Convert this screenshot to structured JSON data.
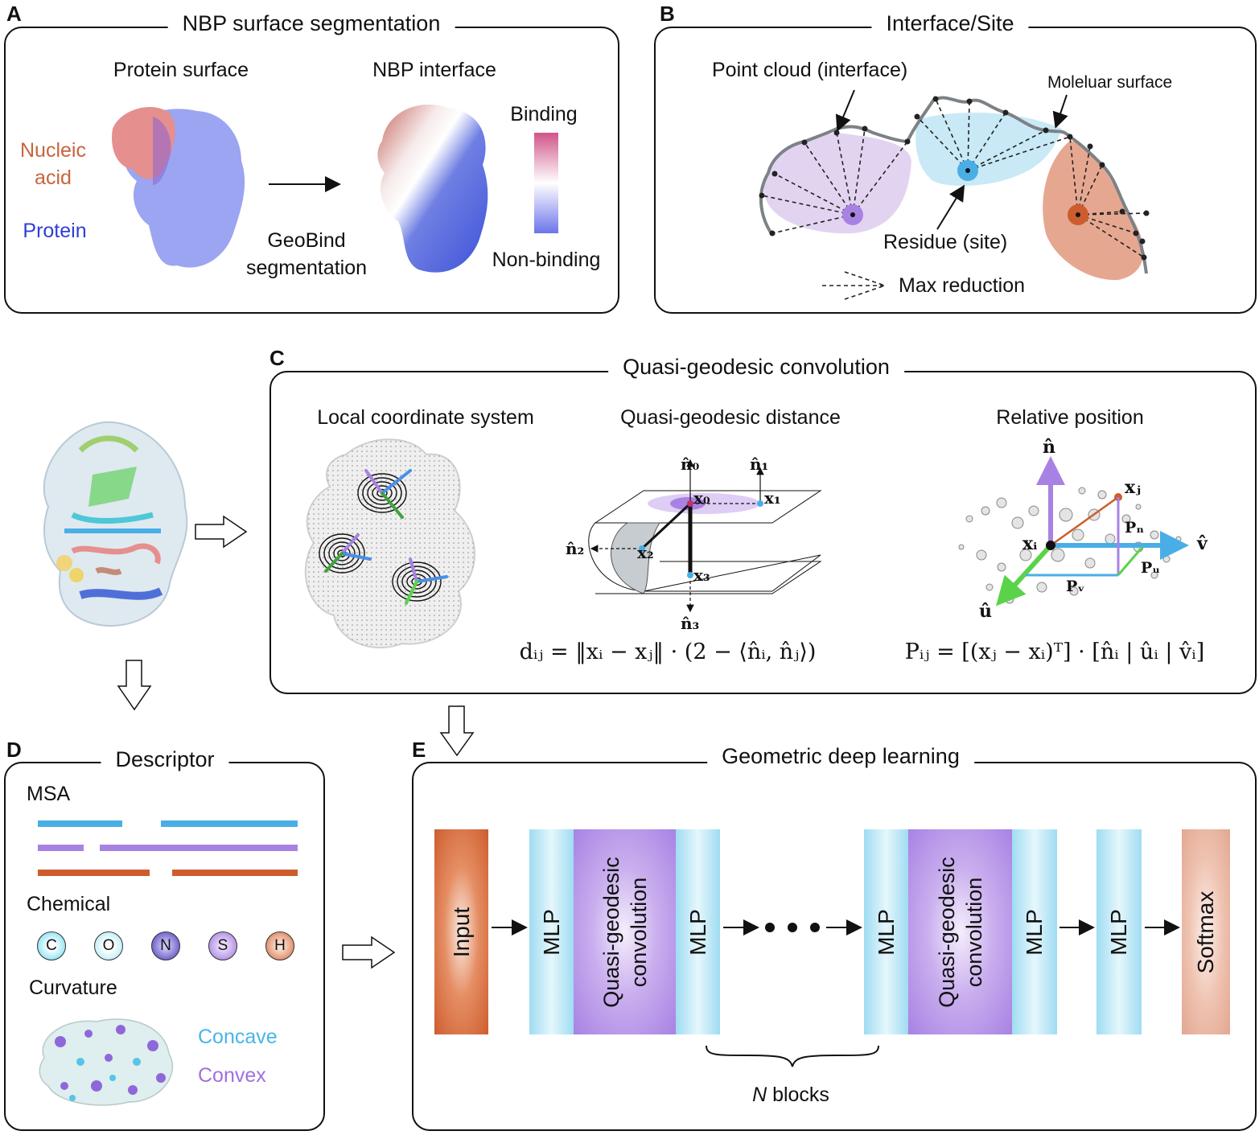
{
  "panel_a": {
    "letter": "A",
    "title": "NBP surface segmentation",
    "protein_surface": "Protein surface",
    "nbp_interface": "NBP interface",
    "nucleic_acid": "Nucleic\nacid",
    "protein": "Protein",
    "geobind": "GeoBind\nsegmentation",
    "binding": "Binding",
    "non_binding": "Non-binding",
    "colors": {
      "nucleic": "#c8643c",
      "protein": "#2f3ed6"
    }
  },
  "panel_b": {
    "letter": "B",
    "title": "Interface/Site",
    "point_cloud": "Point cloud (interface)",
    "molecular_surface": "Moleluar surface",
    "residue": "Residue (site)",
    "max_reduction": "Max reduction"
  },
  "panel_c": {
    "letter": "C",
    "title": "Quasi-geodesic convolution",
    "local_coord": "Local coordinate system",
    "qg_distance": "Quasi-geodesic distance",
    "relative_position": "Relative position",
    "n0": "n̂₀",
    "n1": "n̂₁",
    "n2": "n̂₂",
    "n3": "n̂₃",
    "x0": "x₀",
    "x1": "x₁",
    "x2": "x₂",
    "x3": "x₃",
    "n_hat": "n̂",
    "v_hat": "v̂",
    "u_hat": "û",
    "xi": "xᵢ",
    "xj": "xⱼ",
    "pn": "Pₙ",
    "pu": "Pᵤ",
    "pv": "Pᵥ",
    "formula_d": "dᵢⱼ = ‖xᵢ − xⱼ‖ · (2 − ⟨n̂ᵢ, n̂ⱼ⟩)",
    "formula_p": "Pᵢⱼ = [(xⱼ − xᵢ)ᵀ] · [n̂ᵢ | ûᵢ | v̂ᵢ]"
  },
  "panel_d": {
    "letter": "D",
    "title": "Descriptor",
    "msa": "MSA",
    "chemical": "Chemical",
    "curvature": "Curvature",
    "concave": "Concave",
    "convex": "Convex",
    "atoms": [
      "C",
      "O",
      "N",
      "S",
      "H"
    ],
    "colors": {
      "msa_blue": "#4aaee6",
      "msa_purple": "#a882e3",
      "msa_orange": "#cd5d2d",
      "concave": "#4ab4ea",
      "convex": "#a070e0"
    }
  },
  "panel_e": {
    "letter": "E",
    "title": "Geometric deep learning",
    "input": "Input",
    "mlp": "MLP",
    "qgc": "Quasi-geodesic\nconvolution",
    "softmax": "Softmax",
    "n_blocks_n": "N",
    "n_blocks_rest": " blocks"
  }
}
